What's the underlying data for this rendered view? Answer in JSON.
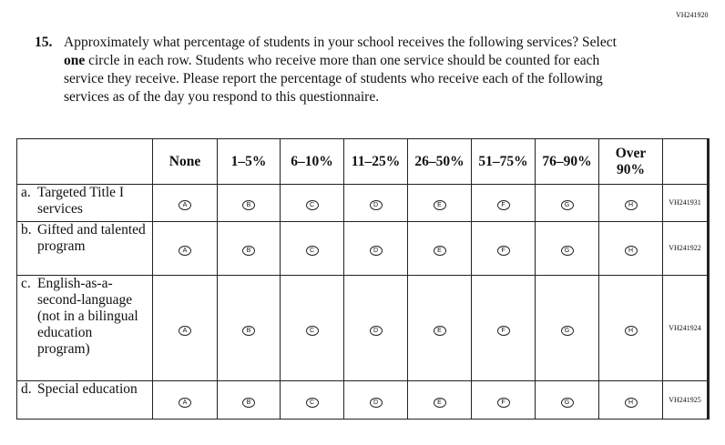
{
  "page_code": "VH241920",
  "question": {
    "number": "15.",
    "text_before": "Approximately what percentage of students in your school receives the following services? Select ",
    "emphasis": "one",
    "text_after": " circle in each row. Students who receive more than one service should be counted for each service they receive. Please report the percentage of students who receive each of the following services as of the day you respond to this questionnaire."
  },
  "columns": [
    "None",
    "1–5%",
    "6–10%",
    "11–25%",
    "26–50%",
    "51–75%",
    "76–90%",
    "Over 90%"
  ],
  "bubbles": [
    "A",
    "B",
    "C",
    "D",
    "E",
    "F",
    "G",
    "H"
  ],
  "rows": [
    {
      "letter": "a.",
      "label": "Targeted Title I services",
      "code": "VH241931"
    },
    {
      "letter": "b.",
      "label": "Gifted and talented program",
      "code": "VH241922"
    },
    {
      "letter": "c.",
      "label": "English-as-a-second-language (not in a bilingual education program)",
      "code": "VH241924"
    },
    {
      "letter": "d.",
      "label": "Special education",
      "code": "VH241925"
    }
  ]
}
